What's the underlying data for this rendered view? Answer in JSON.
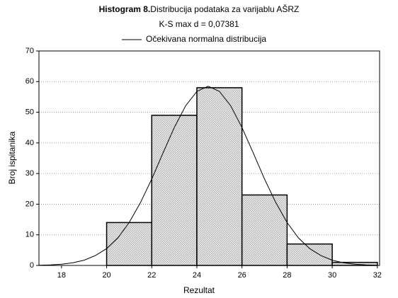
{
  "chart_data": {
    "type": "histogram",
    "title_label": "Histogram 8.",
    "title": "Distribucija podataka za varijablu AŠRZ",
    "subtitle": "K-S max d = 0,07381",
    "xlabel": "Rezultat",
    "ylabel": "Broj ispitanika",
    "bins": [
      20,
      22,
      24,
      26,
      28,
      30,
      32
    ],
    "values": [
      14,
      49,
      58,
      23,
      7,
      1
    ],
    "color": "#d9d9d9",
    "xlim": [
      17,
      32.1
    ],
    "ylim": [
      0,
      70
    ],
    "xticks": [
      18,
      20,
      22,
      24,
      26,
      28,
      30,
      32
    ],
    "yticks": [
      0,
      10,
      20,
      30,
      40,
      50,
      60,
      70
    ],
    "grid": true,
    "curve": {
      "name": "Očekivana normalna distribucija",
      "color": "#000000",
      "x": [
        17,
        17.5,
        18,
        18.5,
        19,
        19.5,
        20,
        20.5,
        21,
        21.5,
        22,
        22.5,
        23,
        23.5,
        24,
        24.5,
        25,
        25.5,
        26,
        26.5,
        27,
        27.5,
        28,
        28.5,
        29,
        29.5,
        30,
        30.5,
        31,
        31.5,
        32
      ],
      "values": [
        0.08,
        0.19,
        0.42,
        0.88,
        1.7,
        3.2,
        5.5,
        9.0,
        14.0,
        20.5,
        28.2,
        36.7,
        45.0,
        52.1,
        56.8,
        58.5,
        56.8,
        52.1,
        45.0,
        36.7,
        28.2,
        20.5,
        14.0,
        9.0,
        5.5,
        3.2,
        1.7,
        0.88,
        0.42,
        0.19,
        0.08
      ]
    }
  }
}
